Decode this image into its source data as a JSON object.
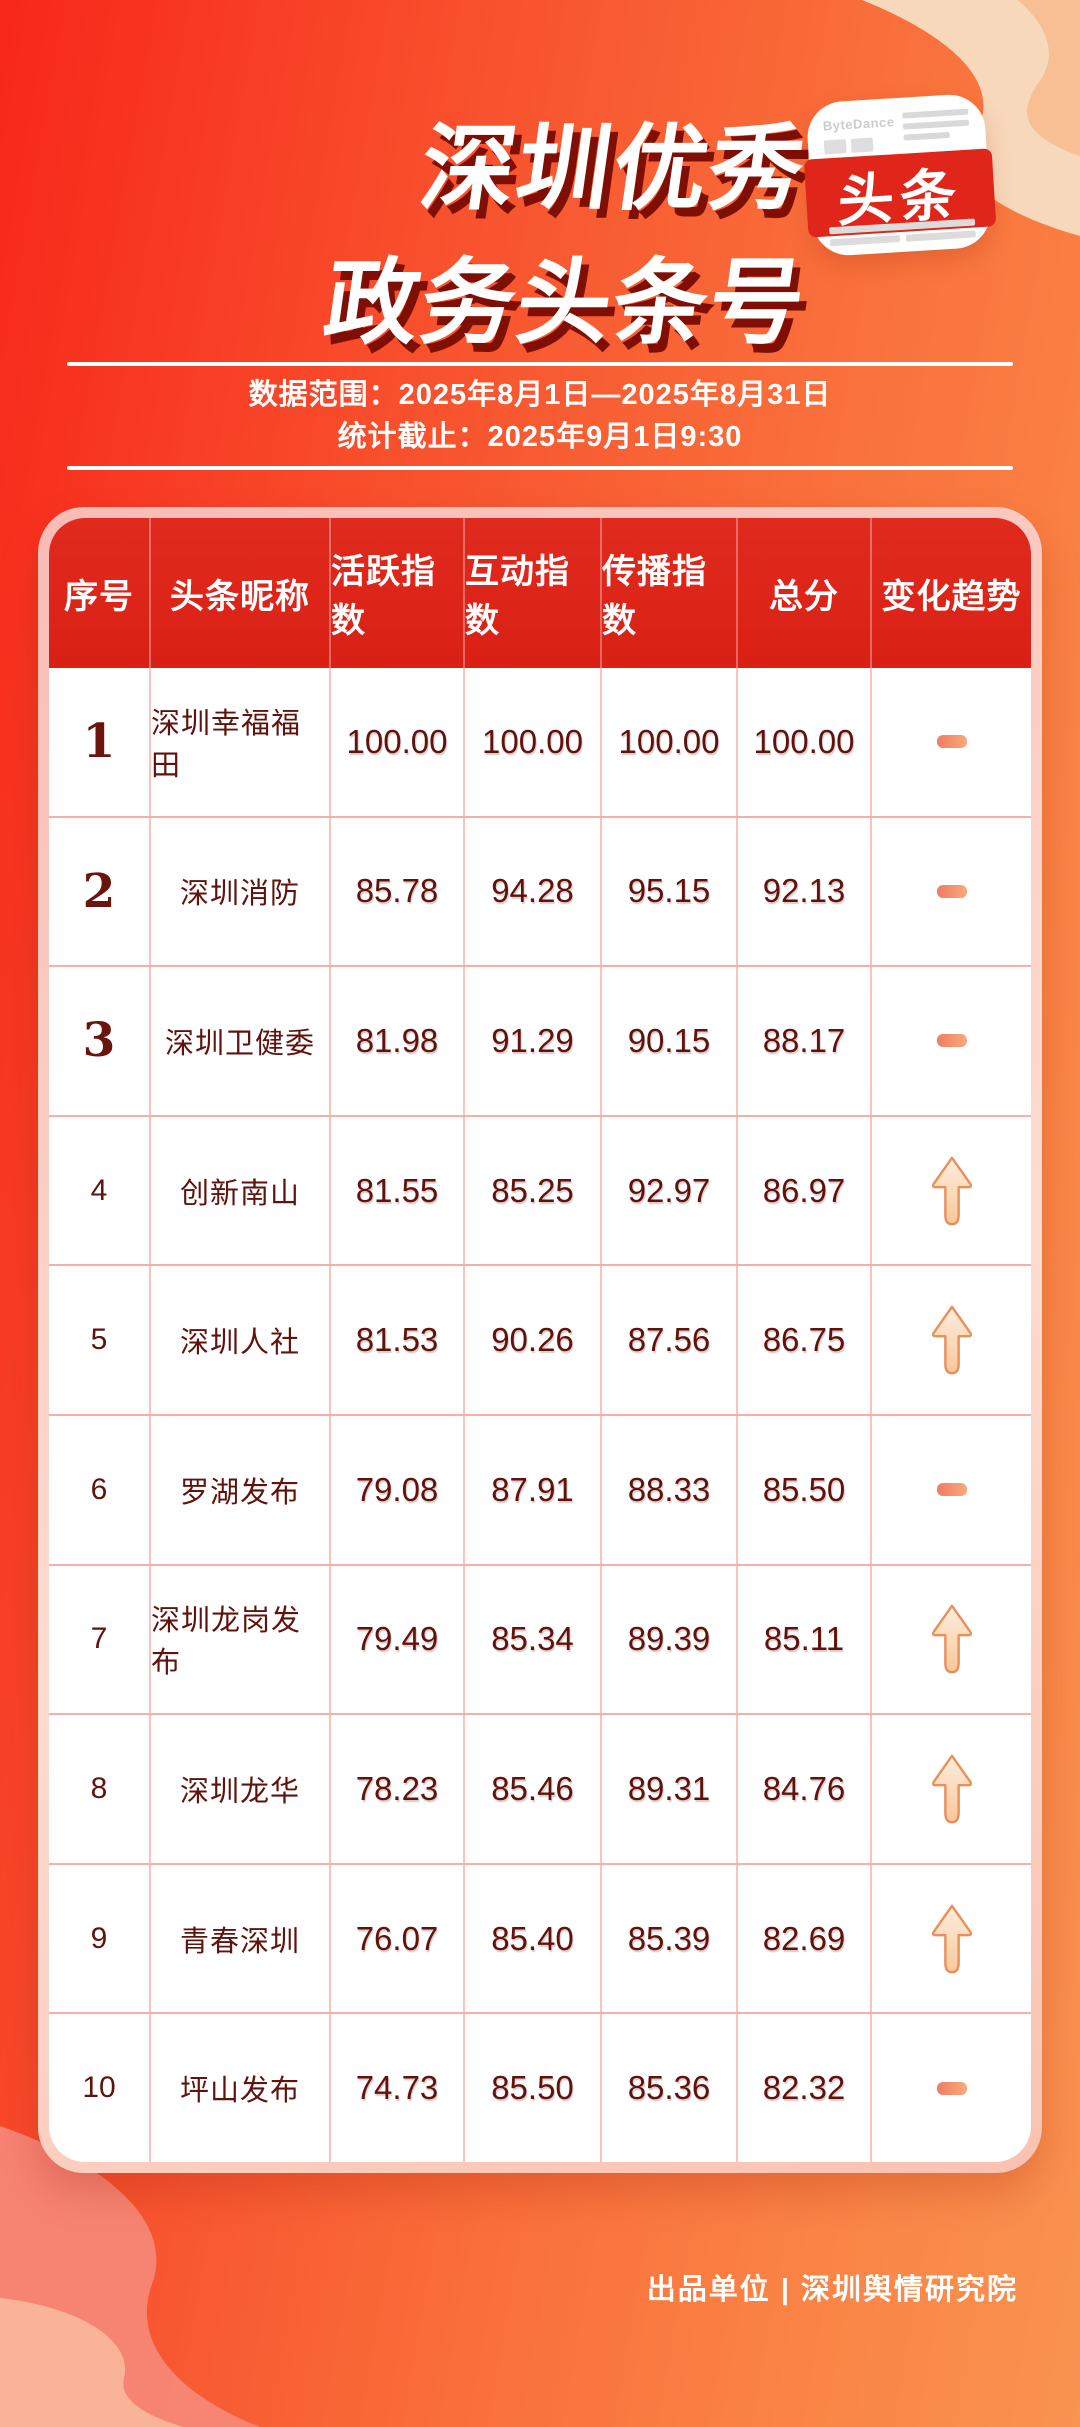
{
  "header": {
    "title_line1": "深圳优秀",
    "title_line2": "政务头条号",
    "logo_brand": "ByteDance",
    "logo_label": "头条"
  },
  "meta": {
    "data_range": "数据范围：2025年8月1日—2025年8月31日",
    "stat_deadline": "统计截止：2025年9月1日9:30"
  },
  "table": {
    "headers": [
      "序号",
      "头条昵称",
      "活跃指数",
      "互动指数",
      "传播指数",
      "总分",
      "变化趋势"
    ],
    "rows": [
      {
        "rank": "1",
        "name": "深圳幸福福田",
        "active": "100.00",
        "interact": "100.00",
        "spread": "100.00",
        "total": "100.00",
        "trend": "flat"
      },
      {
        "rank": "2",
        "name": "深圳消防",
        "active": "85.78",
        "interact": "94.28",
        "spread": "95.15",
        "total": "92.13",
        "trend": "flat"
      },
      {
        "rank": "3",
        "name": "深圳卫健委",
        "active": "81.98",
        "interact": "91.29",
        "spread": "90.15",
        "total": "88.17",
        "trend": "flat"
      },
      {
        "rank": "4",
        "name": "创新南山",
        "active": "81.55",
        "interact": "85.25",
        "spread": "92.97",
        "total": "86.97",
        "trend": "up"
      },
      {
        "rank": "5",
        "name": "深圳人社",
        "active": "81.53",
        "interact": "90.26",
        "spread": "87.56",
        "total": "86.75",
        "trend": "up"
      },
      {
        "rank": "6",
        "name": "罗湖发布",
        "active": "79.08",
        "interact": "87.91",
        "spread": "88.33",
        "total": "85.50",
        "trend": "flat"
      },
      {
        "rank": "7",
        "name": "深圳龙岗发布",
        "active": "79.49",
        "interact": "85.34",
        "spread": "89.39",
        "total": "85.11",
        "trend": "up"
      },
      {
        "rank": "8",
        "name": "深圳龙华",
        "active": "78.23",
        "interact": "85.46",
        "spread": "89.31",
        "total": "84.76",
        "trend": "up"
      },
      {
        "rank": "9",
        "name": "青春深圳",
        "active": "76.07",
        "interact": "85.40",
        "spread": "85.39",
        "total": "82.69",
        "trend": "up"
      },
      {
        "rank": "10",
        "name": "坪山发布",
        "active": "74.73",
        "interact": "85.50",
        "spread": "85.36",
        "total": "82.32",
        "trend": "flat"
      }
    ]
  },
  "footer": {
    "credit": "出品单位 | 深圳舆情研究院"
  },
  "colors": {
    "bg_red": "#f7271a",
    "bg_orange": "#f99350",
    "header_red": "#dd2317",
    "card_border_pink": "#f9bcb6",
    "text_maroon": "#5f130c",
    "trend_flat": "#f28568",
    "trend_up_fill": "#fbe3c8",
    "trend_up_stroke": "#e98f58",
    "title_shadow": "#7f0f05"
  },
  "chart_data": {
    "type": "table",
    "title": "深圳优秀政务头条号",
    "subtitle_range": "数据范围：2025年8月1日—2025年8月31日",
    "subtitle_deadline": "统计截止：2025年9月1日9:30",
    "columns": [
      "序号",
      "头条昵称",
      "活跃指数",
      "互动指数",
      "传播指数",
      "总分",
      "变化趋势"
    ],
    "rows": [
      [
        "1",
        "深圳幸福福田",
        "100.00",
        "100.00",
        "100.00",
        "100.00",
        "flat"
      ],
      [
        "2",
        "深圳消防",
        "85.78",
        "94.28",
        "95.15",
        "92.13",
        "flat"
      ],
      [
        "3",
        "深圳卫健委",
        "81.98",
        "91.29",
        "90.15",
        "88.17",
        "flat"
      ],
      [
        "4",
        "创新南山",
        "81.55",
        "85.25",
        "92.97",
        "86.97",
        "up"
      ],
      [
        "5",
        "深圳人社",
        "81.53",
        "90.26",
        "87.56",
        "86.75",
        "up"
      ],
      [
        "6",
        "罗湖发布",
        "79.08",
        "87.91",
        "88.33",
        "85.50",
        "flat"
      ],
      [
        "7",
        "深圳龙岗发布",
        "79.49",
        "85.34",
        "89.39",
        "85.11",
        "up"
      ],
      [
        "8",
        "深圳龙华",
        "78.23",
        "85.46",
        "89.31",
        "84.76",
        "up"
      ],
      [
        "9",
        "青春深圳",
        "76.07",
        "85.40",
        "85.39",
        "82.69",
        "up"
      ],
      [
        "10",
        "坪山发布",
        "74.73",
        "85.50",
        "85.36",
        "82.32",
        "flat"
      ]
    ]
  }
}
